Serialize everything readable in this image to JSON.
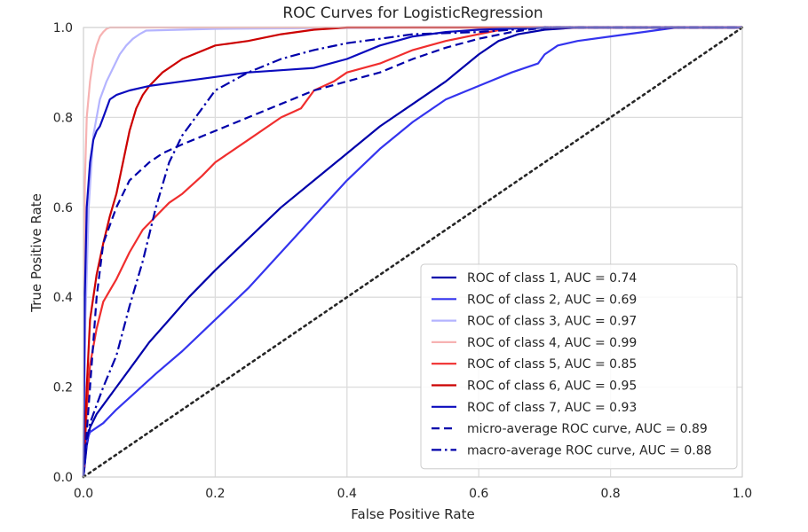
{
  "chart_data": {
    "type": "line",
    "title": "ROC Curves for LogisticRegression",
    "xlabel": "False Positive Rate",
    "ylabel": "True Positive Rate",
    "xlim": [
      0.0,
      1.0
    ],
    "ylim": [
      0.0,
      1.0
    ],
    "x_ticks": [
      "0.0",
      "0.2",
      "0.4",
      "0.6",
      "0.8",
      "1.0"
    ],
    "y_ticks": [
      "0.0",
      "0.2",
      "0.4",
      "0.6",
      "0.8",
      "1.0"
    ],
    "grid": true,
    "legend_position": "bottom-right",
    "series": [
      {
        "name": "ROC of class 1, AUC = 0.74",
        "color": "#0000aa",
        "dash": "solid",
        "x": [
          0.0,
          0.005,
          0.01,
          0.02,
          0.04,
          0.06,
          0.08,
          0.1,
          0.13,
          0.16,
          0.2,
          0.25,
          0.3,
          0.35,
          0.4,
          0.45,
          0.5,
          0.55,
          0.6,
          0.63,
          0.66,
          0.7,
          0.75,
          0.8,
          0.85,
          0.9,
          1.0
        ],
        "y": [
          0.0,
          0.07,
          0.11,
          0.14,
          0.18,
          0.22,
          0.26,
          0.3,
          0.35,
          0.4,
          0.46,
          0.53,
          0.6,
          0.66,
          0.72,
          0.78,
          0.83,
          0.88,
          0.94,
          0.97,
          0.985,
          0.995,
          1.0,
          1.0,
          1.0,
          1.0,
          1.0
        ]
      },
      {
        "name": "ROC of class 2, AUC = 0.69",
        "color": "#3434ee",
        "dash": "solid",
        "x": [
          0.0,
          0.005,
          0.01,
          0.03,
          0.05,
          0.08,
          0.11,
          0.15,
          0.2,
          0.25,
          0.3,
          0.35,
          0.4,
          0.45,
          0.5,
          0.55,
          0.6,
          0.65,
          0.69,
          0.7,
          0.72,
          0.75,
          0.8,
          0.85,
          0.9,
          1.0
        ],
        "y": [
          0.0,
          0.08,
          0.1,
          0.12,
          0.15,
          0.19,
          0.23,
          0.28,
          0.35,
          0.42,
          0.5,
          0.58,
          0.66,
          0.73,
          0.79,
          0.84,
          0.87,
          0.9,
          0.92,
          0.94,
          0.96,
          0.97,
          0.98,
          0.99,
          1.0,
          1.0
        ]
      },
      {
        "name": "ROC of class 3, AUC = 0.97",
        "color": "#b4b4ff",
        "dash": "solid",
        "x": [
          0.0,
          0.003,
          0.008,
          0.015,
          0.025,
          0.035,
          0.045,
          0.055,
          0.065,
          0.075,
          0.085,
          0.095,
          0.2,
          0.5,
          1.0
        ],
        "y": [
          0.0,
          0.35,
          0.6,
          0.76,
          0.84,
          0.88,
          0.91,
          0.94,
          0.96,
          0.975,
          0.985,
          0.993,
          0.997,
          1.0,
          1.0
        ]
      },
      {
        "name": "ROC of class 4, AUC = 0.99",
        "color": "#f7b2b2",
        "dash": "solid",
        "x": [
          0.0,
          0.002,
          0.005,
          0.01,
          0.015,
          0.02,
          0.025,
          0.03,
          0.035,
          0.04,
          0.2,
          1.0
        ],
        "y": [
          0.0,
          0.65,
          0.8,
          0.88,
          0.93,
          0.96,
          0.98,
          0.99,
          0.997,
          1.0,
          1.0,
          1.0
        ]
      },
      {
        "name": "ROC of class 5, AUC = 0.85",
        "color": "#f02e2e",
        "dash": "solid",
        "x": [
          0.0,
          0.005,
          0.01,
          0.02,
          0.03,
          0.05,
          0.07,
          0.09,
          0.11,
          0.13,
          0.15,
          0.18,
          0.2,
          0.25,
          0.3,
          0.33,
          0.35,
          0.38,
          0.4,
          0.45,
          0.5,
          0.55,
          0.6,
          0.65,
          1.0
        ],
        "y": [
          0.0,
          0.15,
          0.25,
          0.33,
          0.39,
          0.44,
          0.5,
          0.55,
          0.58,
          0.61,
          0.63,
          0.67,
          0.7,
          0.75,
          0.8,
          0.82,
          0.86,
          0.88,
          0.9,
          0.92,
          0.95,
          0.97,
          0.985,
          1.0,
          1.0
        ]
      },
      {
        "name": "ROC of class 6, AUC = 0.95",
        "color": "#cc0000",
        "dash": "solid",
        "x": [
          0.0,
          0.005,
          0.01,
          0.02,
          0.03,
          0.04,
          0.05,
          0.06,
          0.07,
          0.08,
          0.09,
          0.1,
          0.12,
          0.15,
          0.2,
          0.25,
          0.3,
          0.35,
          0.4,
          0.5,
          1.0
        ],
        "y": [
          0.0,
          0.2,
          0.35,
          0.45,
          0.52,
          0.58,
          0.63,
          0.7,
          0.77,
          0.82,
          0.85,
          0.87,
          0.9,
          0.93,
          0.96,
          0.97,
          0.985,
          0.995,
          1.0,
          1.0,
          1.0
        ]
      },
      {
        "name": "ROC of class 7, AUC = 0.93",
        "color": "#0c0cbe",
        "dash": "solid",
        "x": [
          0.0,
          0.002,
          0.005,
          0.01,
          0.015,
          0.02,
          0.025,
          0.03,
          0.04,
          0.05,
          0.07,
          0.1,
          0.15,
          0.2,
          0.25,
          0.3,
          0.35,
          0.4,
          0.45,
          0.5,
          0.55,
          0.6,
          0.7,
          0.8,
          1.0
        ],
        "y": [
          0.0,
          0.4,
          0.6,
          0.7,
          0.75,
          0.77,
          0.78,
          0.8,
          0.84,
          0.85,
          0.86,
          0.87,
          0.88,
          0.89,
          0.9,
          0.905,
          0.91,
          0.93,
          0.96,
          0.98,
          0.99,
          0.995,
          1.0,
          1.0,
          1.0
        ]
      },
      {
        "name": "micro-average ROC curve, AUC = 0.89",
        "color": "#0000aa",
        "dash": "dashed",
        "x": [
          0.0,
          0.01,
          0.02,
          0.03,
          0.05,
          0.07,
          0.1,
          0.12,
          0.15,
          0.2,
          0.25,
          0.3,
          0.35,
          0.4,
          0.45,
          0.5,
          0.55,
          0.6,
          0.65,
          0.7,
          0.8,
          1.0
        ],
        "y": [
          0.0,
          0.2,
          0.4,
          0.52,
          0.6,
          0.66,
          0.7,
          0.72,
          0.74,
          0.77,
          0.8,
          0.83,
          0.86,
          0.88,
          0.9,
          0.93,
          0.955,
          0.975,
          0.99,
          1.0,
          1.0,
          1.0
        ]
      },
      {
        "name": "macro-average ROC curve, AUC = 0.88",
        "color": "#0000aa",
        "dash": "dashdot",
        "x": [
          0.0,
          0.005,
          0.01,
          0.02,
          0.03,
          0.05,
          0.07,
          0.09,
          0.11,
          0.13,
          0.15,
          0.18,
          0.2,
          0.25,
          0.3,
          0.35,
          0.4,
          0.45,
          0.5,
          0.6,
          0.7,
          0.8,
          1.0
        ],
        "y": [
          0.0,
          0.08,
          0.12,
          0.16,
          0.2,
          0.27,
          0.38,
          0.48,
          0.6,
          0.7,
          0.76,
          0.82,
          0.86,
          0.9,
          0.93,
          0.95,
          0.965,
          0.975,
          0.985,
          0.99,
          1.0,
          1.0,
          1.0
        ]
      },
      {
        "name": "",
        "color": "#262626",
        "dash": "dotted",
        "x": [
          0.0,
          1.0
        ],
        "y": [
          0.0,
          1.0
        ]
      }
    ]
  }
}
